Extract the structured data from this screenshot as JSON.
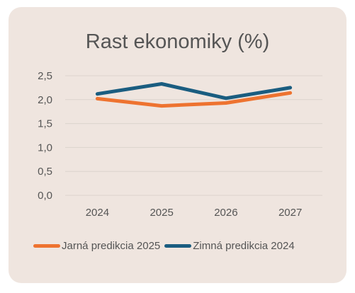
{
  "chart_data": {
    "type": "line",
    "title": "Rast ekonomiky (%)",
    "xlabel": "",
    "ylabel": "",
    "categories": [
      "2024",
      "2025",
      "2026",
      "2027"
    ],
    "ylim": [
      0,
      2.5
    ],
    "yticks": [
      "0,0",
      "0,5",
      "1,0",
      "1,5",
      "2,0",
      "2,5"
    ],
    "grid": true,
    "legend": "bottom",
    "series": [
      {
        "name": "Jarná predikcia 2025",
        "values": [
          2.02,
          1.87,
          1.93,
          2.14
        ],
        "color": "#ee7330"
      },
      {
        "name": "Zimná predikcia 2024",
        "values": [
          2.12,
          2.33,
          2.03,
          2.25
        ],
        "color": "#1a5d80"
      }
    ]
  }
}
